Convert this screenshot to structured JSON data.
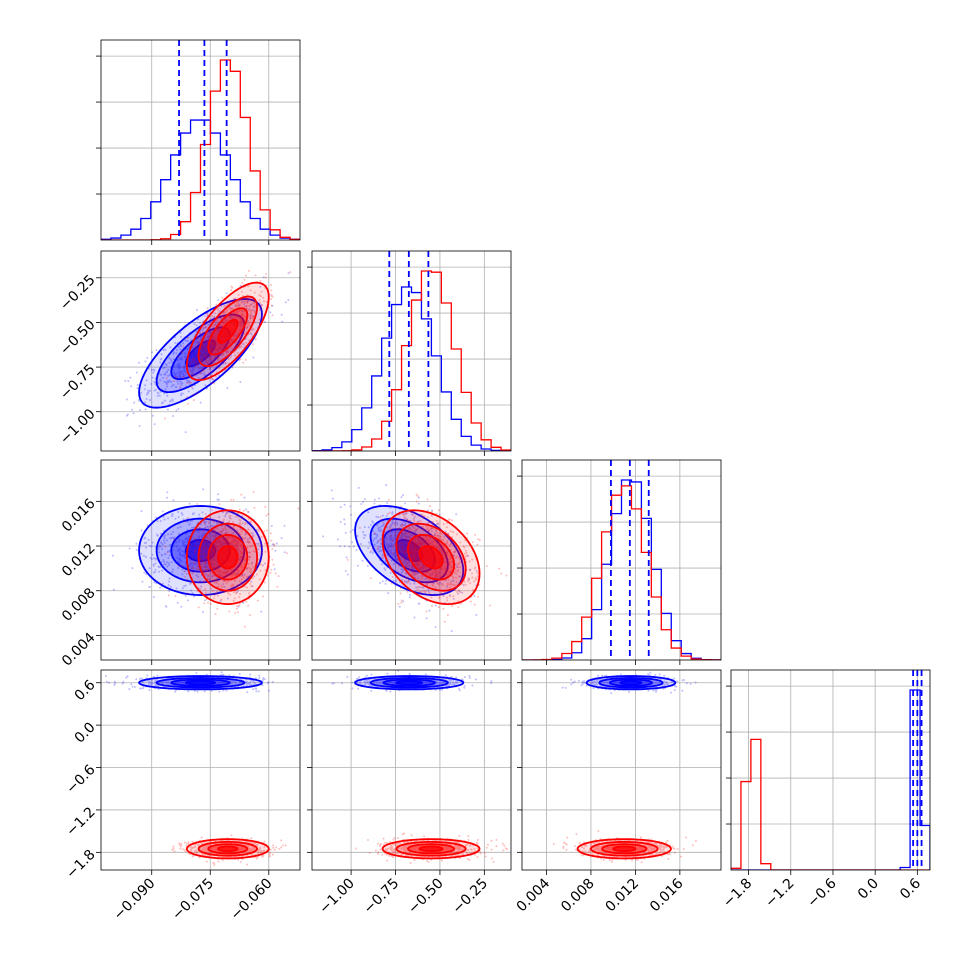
{
  "chart_data": {
    "type": "corner",
    "grid": true,
    "parameters": [
      {
        "ticks": [
          -0.09,
          -0.075,
          -0.06
        ],
        "tick_labels": [
          "−0.090",
          "−0.075",
          "−0.060"
        ],
        "range": [
          -0.103,
          -0.052
        ]
      },
      {
        "ticks": [
          -1.0,
          -0.75,
          -0.5,
          -0.25
        ],
        "tick_labels": [
          "−1.00",
          "−0.75",
          "−0.50",
          "−0.25"
        ],
        "range": [
          -1.22,
          -0.1
        ]
      },
      {
        "ticks": [
          0.004,
          0.008,
          0.012,
          0.016
        ],
        "tick_labels": [
          "0.004",
          "0.008",
          "0.012",
          "0.016"
        ],
        "range": [
          0.0018,
          0.0197
        ]
      },
      {
        "ticks": [
          -1.8,
          -1.2,
          -0.6,
          0.0,
          0.6
        ],
        "tick_labels": [
          "−1.8",
          "−1.2",
          "−0.6",
          "0.0",
          "0.6"
        ],
        "range": [
          -2.05,
          0.78
        ]
      }
    ],
    "series": [
      {
        "color": "#0000ff",
        "mean": [
          -0.0775,
          -0.673,
          0.0116,
          0.6
        ],
        "sd": [
          0.0075,
          0.145,
          0.0019,
          0.045
        ],
        "corr": [
          [
            0,
            1,
            0.72
          ],
          [
            0,
            2,
            0.0
          ],
          [
            1,
            2,
            -0.45
          ],
          [
            0,
            3,
            0.0
          ],
          [
            1,
            3,
            0.0
          ],
          [
            2,
            3,
            0.0
          ]
        ],
        "quantiles": [
          [
            -0.083,
            -0.0765,
            -0.0708
          ],
          [
            -0.785,
            -0.675,
            -0.565
          ],
          [
            0.0098,
            0.0115,
            0.0132
          ],
          [
            0.54,
            0.6,
            0.66
          ]
        ]
      },
      {
        "color": "#ff0000",
        "mean": [
          -0.0705,
          -0.55,
          0.011,
          -1.75
        ],
        "sd": [
          0.005,
          0.13,
          0.002,
          0.065
        ],
        "corr": [
          [
            0,
            1,
            0.7
          ],
          [
            0,
            2,
            0.0
          ],
          [
            1,
            2,
            -0.35
          ],
          [
            0,
            3,
            0.0
          ],
          [
            1,
            3,
            0.0
          ],
          [
            2,
            3,
            0.0
          ]
        ],
        "quantiles": []
      }
    ]
  }
}
